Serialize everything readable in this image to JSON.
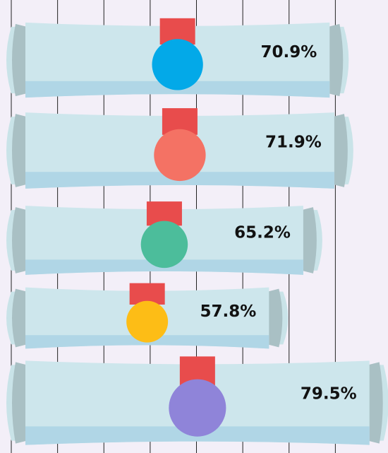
{
  "chart_data": {
    "type": "bar",
    "orientation": "horizontal",
    "categories": [
      null,
      null,
      null,
      null,
      null
    ],
    "values": [
      70.9,
      71.9,
      65.2,
      57.8,
      79.5
    ],
    "value_labels": [
      "70.9%",
      "71.9%",
      "65.2%",
      "57.8%",
      "79.5%"
    ],
    "colors": [
      "#03a9e8",
      "#f47264",
      "#4cbd9b",
      "#fdbd16",
      "#8f84d9"
    ],
    "xlim": [
      0,
      80
    ],
    "xticks": [
      0,
      10,
      20,
      30,
      40,
      50,
      60,
      70
    ],
    "grid": true
  }
}
